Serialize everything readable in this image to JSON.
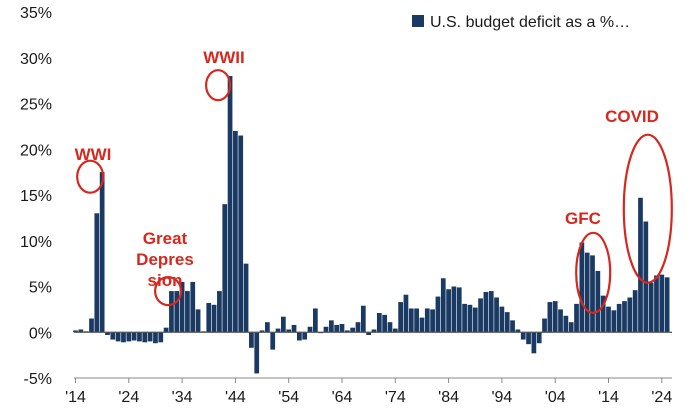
{
  "chart_data": {
    "type": "bar",
    "title": "",
    "xlabel": "",
    "ylabel": "",
    "ylim": [
      -5,
      35
    ],
    "y_ticks": [
      "-5%",
      "0%",
      "5%",
      "10%",
      "15%",
      "20%",
      "25%",
      "30%",
      "35%"
    ],
    "y_tick_values": [
      -5,
      0,
      5,
      10,
      15,
      20,
      25,
      30,
      35
    ],
    "x_ticks": [
      "'14",
      "'24",
      "'34",
      "'44",
      "'54",
      "'64",
      "'74",
      "'84",
      "'94",
      "'04",
      "'14",
      "'24"
    ],
    "x_tick_years": [
      1914,
      1924,
      1934,
      1944,
      1954,
      1964,
      1974,
      1984,
      1994,
      2004,
      2014,
      2024
    ],
    "legend": {
      "label": "U.S. budget deficit as a %…",
      "color": "#1a3a63"
    },
    "series": [
      {
        "name": "U.S. budget deficit as a %…",
        "color": "#1a3a63",
        "years": [
          1914,
          1915,
          1916,
          1917,
          1918,
          1919,
          1920,
          1921,
          1922,
          1923,
          1924,
          1925,
          1926,
          1927,
          1928,
          1929,
          1930,
          1931,
          1932,
          1933,
          1934,
          1935,
          1936,
          1937,
          1938,
          1939,
          1940,
          1941,
          1942,
          1943,
          1944,
          1945,
          1946,
          1947,
          1948,
          1949,
          1950,
          1951,
          1952,
          1953,
          1954,
          1955,
          1956,
          1957,
          1958,
          1959,
          1960,
          1961,
          1962,
          1963,
          1964,
          1965,
          1966,
          1967,
          1968,
          1969,
          1970,
          1971,
          1972,
          1973,
          1974,
          1975,
          1976,
          1977,
          1978,
          1979,
          1980,
          1981,
          1982,
          1983,
          1984,
          1985,
          1986,
          1987,
          1988,
          1989,
          1990,
          1991,
          1992,
          1993,
          1994,
          1995,
          1996,
          1997,
          1998,
          1999,
          2000,
          2001,
          2002,
          2003,
          2004,
          2005,
          2006,
          2007,
          2008,
          2009,
          2010,
          2011,
          2012,
          2013,
          2014,
          2015,
          2016,
          2017,
          2018,
          2019,
          2020,
          2021,
          2022,
          2023,
          2024,
          2025
        ],
        "values": [
          0.2,
          0.3,
          0.1,
          1.5,
          13.0,
          17.5,
          -0.3,
          -0.8,
          -1.0,
          -1.1,
          -1.0,
          -0.9,
          -1.0,
          -1.1,
          -1.0,
          -1.2,
          -1.1,
          0.5,
          4.5,
          4.5,
          5.5,
          4.5,
          5.5,
          2.5,
          0.1,
          3.2,
          3.0,
          4.5,
          14.0,
          28.0,
          22.0,
          21.5,
          7.5,
          -1.7,
          -4.5,
          0.2,
          1.1,
          -1.9,
          0.4,
          1.7,
          0.3,
          0.8,
          -0.9,
          -0.8,
          0.6,
          2.6,
          -0.1,
          0.6,
          1.3,
          0.8,
          0.9,
          0.2,
          0.5,
          1.1,
          2.9,
          -0.3,
          0.3,
          2.1,
          1.9,
          1.1,
          0.4,
          3.3,
          4.1,
          2.6,
          2.6,
          1.6,
          2.6,
          2.5,
          3.9,
          5.9,
          4.7,
          5.0,
          4.9,
          3.1,
          3.0,
          2.7,
          3.7,
          4.4,
          4.5,
          3.8,
          2.8,
          2.2,
          1.3,
          0.3,
          -0.8,
          -1.3,
          -2.3,
          -1.2,
          1.5,
          3.3,
          3.4,
          2.5,
          1.8,
          1.1,
          3.1,
          9.8,
          8.7,
          8.4,
          6.7,
          4.0,
          2.8,
          2.4,
          3.1,
          3.4,
          3.8,
          4.6,
          14.7,
          12.1,
          5.4,
          6.2,
          6.3,
          6.0
        ]
      }
    ],
    "annotations": [
      {
        "label": "WWI",
        "year": 1919,
        "value": 17
      },
      {
        "label": "Great Depres sion",
        "lines": [
          "Great",
          "Depres",
          "sion"
        ],
        "year": 1931,
        "value": 4.5
      },
      {
        "label": "WWII",
        "year": 1943,
        "value": 27
      },
      {
        "label": "GFC",
        "year": 2010,
        "value": 6.5
      },
      {
        "label": "COVID",
        "year": 2021,
        "value": 13.5
      }
    ]
  }
}
